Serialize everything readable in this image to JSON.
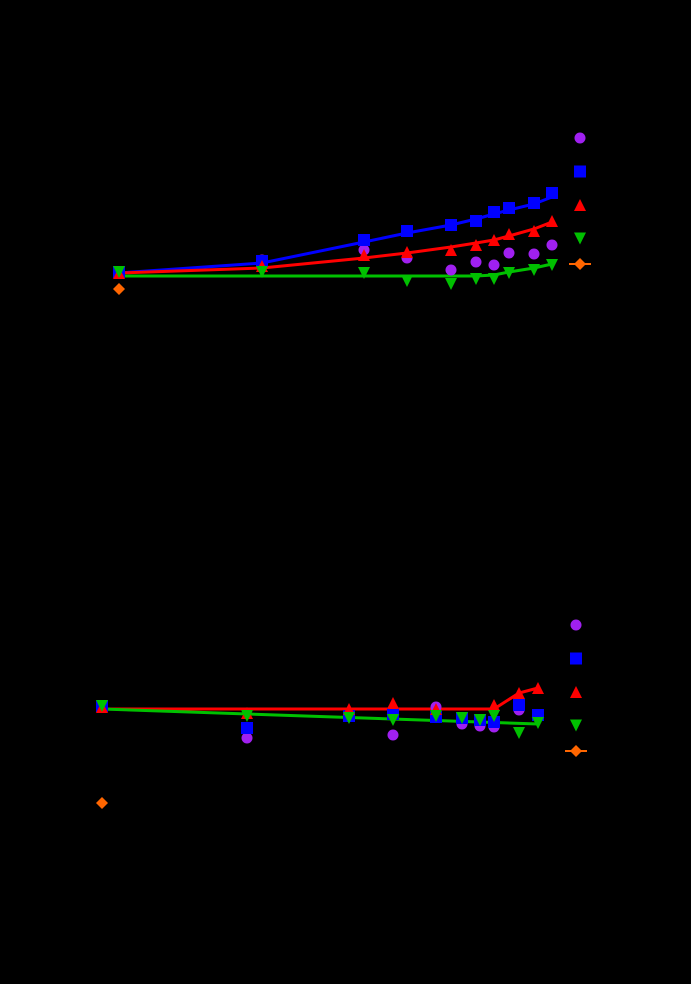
{
  "chart_data": [
    {
      "type": "scatter",
      "xlim": [
        0,
        500
      ],
      "ylim": [
        0,
        230
      ],
      "series": [
        {
          "color": "#a020f0",
          "marker": "circle",
          "x": [
            162,
            264,
            307,
            351,
            376,
            394,
            409,
            434,
            452
          ],
          "values": [
            70,
            80,
            72,
            60,
            68,
            65,
            77,
            76,
            85
          ]
        },
        {
          "color": "#0000ff",
          "marker": "square",
          "x": [
            19,
            162,
            264,
            307,
            351,
            376,
            394,
            409,
            434,
            452
          ],
          "values": [
            58,
            69,
            90,
            99,
            105,
            109,
            118,
            122,
            127,
            137
          ]
        },
        {
          "color": "#ff0000",
          "marker": "triangle-up",
          "x": [
            19,
            162,
            264,
            307,
            351,
            376,
            394,
            409,
            434,
            452
          ],
          "values": [
            57,
            64,
            75,
            78,
            80,
            85,
            90,
            96,
            99,
            109
          ]
        },
        {
          "color": "#00c000",
          "marker": "triangle-down",
          "x": [
            19,
            162,
            264,
            307,
            351,
            376,
            394,
            409,
            434,
            452
          ],
          "values": [
            58,
            58,
            57,
            49,
            46,
            51,
            51,
            57,
            60,
            65
          ]
        },
        {
          "color": "#ff6600",
          "marker": "diamond",
          "x": [
            19
          ],
          "values": [
            41
          ]
        }
      ],
      "fits": [
        {
          "color": "#0000ff",
          "x": [
            19,
            162,
            264,
            307,
            351,
            376,
            394,
            409,
            434,
            452
          ],
          "values": [
            57,
            67,
            88,
            97,
            105,
            111,
            116,
            120,
            126,
            133
          ]
        },
        {
          "color": "#ff0000",
          "x": [
            19,
            162,
            264,
            307,
            351,
            376,
            394,
            409,
            434,
            452
          ],
          "values": [
            57,
            62,
            72,
            77,
            83,
            87,
            90,
            94,
            101,
            108
          ]
        },
        {
          "color": "#00c000",
          "x": [
            19,
            162,
            264,
            307,
            351,
            376,
            394,
            409,
            434,
            452
          ],
          "values": [
            54,
            54,
            54,
            54,
            54,
            54,
            55,
            58,
            62,
            66
          ]
        }
      ]
    },
    {
      "type": "scatter",
      "xlim": [
        0,
        500
      ],
      "ylim": [
        0,
        230
      ],
      "series": [
        {
          "color": "#a020f0",
          "marker": "circle",
          "x": [
            147,
            293,
            336,
            362,
            380,
            394,
            419
          ],
          "values": [
            92,
            95,
            123,
            106,
            104,
            103,
            120
          ]
        },
        {
          "color": "#0000ff",
          "marker": "square",
          "x": [
            2,
            147,
            249,
            293,
            336,
            362,
            380,
            394,
            419,
            438
          ],
          "values": [
            124,
            102,
            114,
            116,
            113,
            112,
            110,
            108,
            125,
            115
          ]
        },
        {
          "color": "#ff0000",
          "marker": "triangle-up",
          "x": [
            2,
            147,
            249,
            293,
            336,
            394,
            419,
            438
          ],
          "values": [
            123,
            117,
            121,
            127,
            121,
            125,
            137,
            142
          ]
        },
        {
          "color": "#00c000",
          "marker": "triangle-down",
          "x": [
            2,
            147,
            249,
            293,
            336,
            362,
            380,
            394,
            419,
            438
          ],
          "values": [
            124,
            114,
            112,
            110,
            114,
            112,
            110,
            114,
            97,
            107
          ]
        },
        {
          "color": "#ff6600",
          "marker": "diamond",
          "x": [
            2
          ],
          "values": [
            27
          ]
        }
      ],
      "fits": [
        {
          "color": "#ff0000",
          "x": [
            2,
            394,
            419,
            438
          ],
          "values": [
            121,
            121,
            137,
            142
          ]
        },
        {
          "color": "#00c000",
          "x": [
            2,
            438
          ],
          "values": [
            121,
            106
          ]
        }
      ]
    }
  ]
}
